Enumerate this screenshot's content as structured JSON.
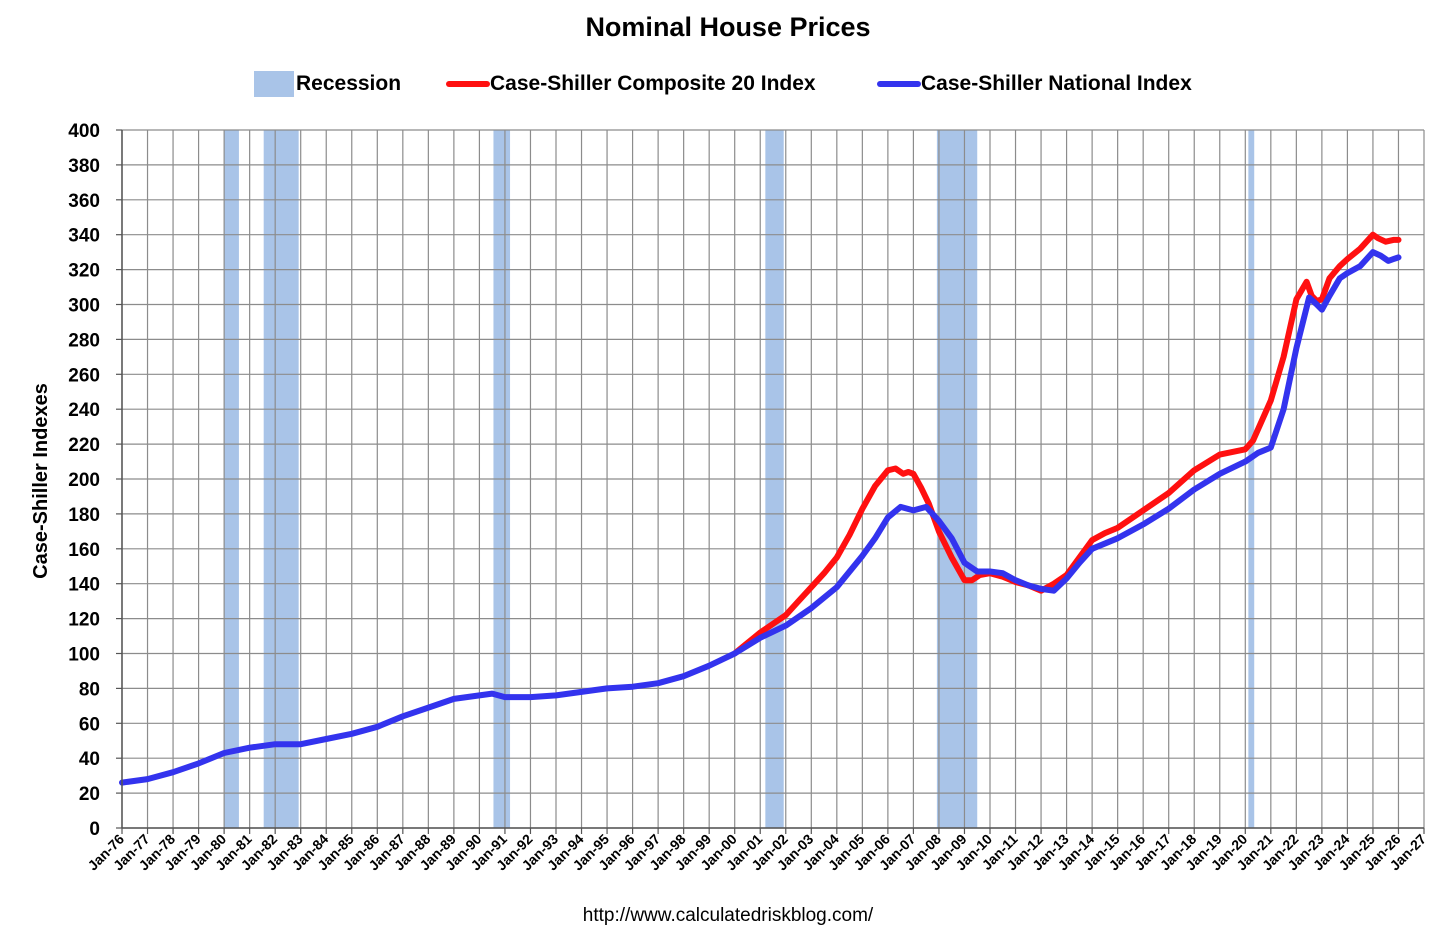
{
  "chart_data": {
    "type": "line",
    "title": "Nominal House Prices",
    "ylabel": "Case-Shiller Indexes",
    "xlabel": "",
    "source": "http://www.calculatedriskblog.com/",
    "ylim": [
      0,
      400
    ],
    "y_ticks": [
      0,
      20,
      40,
      60,
      80,
      100,
      120,
      140,
      160,
      180,
      200,
      220,
      240,
      260,
      280,
      300,
      320,
      340,
      360,
      380,
      400
    ],
    "x_range": [
      1976.0,
      2027.0
    ],
    "x_tick_labels": [
      "Jan-76",
      "Jan-77",
      "Jan-78",
      "Jan-79",
      "Jan-80",
      "Jan-81",
      "Jan-82",
      "Jan-83",
      "Jan-84",
      "Jan-85",
      "Jan-86",
      "Jan-87",
      "Jan-88",
      "Jan-89",
      "Jan-90",
      "Jan-91",
      "Jan-92",
      "Jan-93",
      "Jan-94",
      "Jan-95",
      "Jan-96",
      "Jan-97",
      "Jan-98",
      "Jan-99",
      "Jan-00",
      "Jan-01",
      "Jan-02",
      "Jan-03",
      "Jan-04",
      "Jan-05",
      "Jan-06",
      "Jan-07",
      "Jan-08",
      "Jan-09",
      "Jan-10",
      "Jan-11",
      "Jan-12",
      "Jan-13",
      "Jan-14",
      "Jan-15",
      "Jan-16",
      "Jan-17",
      "Jan-18",
      "Jan-19",
      "Jan-20",
      "Jan-21",
      "Jan-22",
      "Jan-23",
      "Jan-24",
      "Jan-25",
      "Jan-26",
      "Jan-27"
    ],
    "grid": true,
    "legend_position": "top",
    "legend": [
      {
        "label": "Recession",
        "kind": "box",
        "color": "#a9c4e8"
      },
      {
        "label": "Case-Shiller Composite 20 Index",
        "kind": "line",
        "color": "#ff1010"
      },
      {
        "label": "Case-Shiller National Index",
        "kind": "line",
        "color": "#3333ee"
      }
    ],
    "recessions": [
      {
        "start": 1980.0,
        "end": 1980.58
      },
      {
        "start": 1981.55,
        "end": 1982.92
      },
      {
        "start": 1990.55,
        "end": 1991.2
      },
      {
        "start": 2001.2,
        "end": 2001.92
      },
      {
        "start": 2007.92,
        "end": 2009.5
      },
      {
        "start": 2020.12,
        "end": 2020.35
      }
    ],
    "series": [
      {
        "name": "Case-Shiller National Index",
        "color": "#3333ee",
        "x": [
          1976.0,
          1977.0,
          1978.0,
          1979.0,
          1980.0,
          1981.0,
          1982.0,
          1983.0,
          1984.0,
          1985.0,
          1986.0,
          1987.0,
          1988.0,
          1989.0,
          1990.0,
          1990.5,
          1991.0,
          1992.0,
          1993.0,
          1994.0,
          1995.0,
          1996.0,
          1997.0,
          1998.0,
          1999.0,
          2000.0,
          2001.0,
          2002.0,
          2003.0,
          2004.0,
          2005.0,
          2005.5,
          2006.0,
          2006.5,
          2007.0,
          2007.5,
          2008.0,
          2008.5,
          2009.0,
          2009.5,
          2010.0,
          2010.5,
          2011.0,
          2011.5,
          2012.0,
          2012.5,
          2013.0,
          2013.5,
          2014.0,
          2015.0,
          2016.0,
          2017.0,
          2018.0,
          2019.0,
          2020.0,
          2020.5,
          2021.0,
          2021.5,
          2022.0,
          2022.5,
          2022.8,
          2023.0,
          2023.3,
          2023.7,
          2024.0,
          2024.5,
          2025.0,
          2025.3,
          2025.6,
          2025.8,
          2026.0
        ],
        "values": [
          26,
          28,
          32,
          37,
          43,
          46,
          48,
          48,
          51,
          54,
          58,
          64,
          69,
          74,
          76,
          77,
          75,
          75,
          76,
          78,
          80,
          81,
          83,
          87,
          93,
          100,
          109,
          116,
          126,
          138,
          156,
          166,
          178,
          184,
          182,
          184,
          176,
          166,
          152,
          147,
          147,
          146,
          142,
          139,
          137,
          136,
          143,
          152,
          160,
          166,
          174,
          183,
          194,
          203,
          210,
          215,
          218,
          240,
          275,
          304,
          300,
          297,
          305,
          315,
          318,
          322,
          330,
          328,
          325,
          326,
          327
        ]
      },
      {
        "name": "Case-Shiller Composite 20 Index",
        "color": "#ff1010",
        "x": [
          2000.0,
          2000.5,
          2001.0,
          2001.5,
          2002.0,
          2002.5,
          2003.0,
          2003.5,
          2004.0,
          2004.5,
          2005.0,
          2005.5,
          2006.0,
          2006.3,
          2006.6,
          2006.8,
          2007.0,
          2007.3,
          2007.6,
          2008.0,
          2008.5,
          2009.0,
          2009.3,
          2009.6,
          2010.0,
          2010.5,
          2011.0,
          2011.5,
          2012.0,
          2012.5,
          2013.0,
          2013.5,
          2014.0,
          2014.5,
          2015.0,
          2016.0,
          2017.0,
          2018.0,
          2019.0,
          2020.0,
          2020.3,
          2021.0,
          2021.5,
          2022.0,
          2022.4,
          2022.6,
          2022.8,
          2023.0,
          2023.3,
          2023.7,
          2024.0,
          2024.5,
          2025.0,
          2025.2,
          2025.5,
          2025.8,
          2026.0
        ],
        "values": [
          100,
          106,
          112,
          117,
          122,
          130,
          138,
          146,
          155,
          168,
          183,
          196,
          205,
          206,
          203,
          204,
          203,
          195,
          186,
          170,
          155,
          142,
          142,
          145,
          146,
          144,
          141,
          139,
          136,
          140,
          145,
          155,
          165,
          169,
          172,
          182,
          192,
          205,
          214,
          217,
          222,
          245,
          270,
          303,
          313,
          305,
          302,
          303,
          315,
          322,
          326,
          332,
          340,
          338,
          336,
          337,
          337
        ]
      }
    ]
  }
}
